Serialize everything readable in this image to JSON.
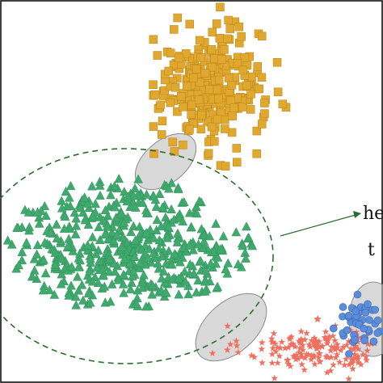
{
  "chart_data": {
    "type": "scatter",
    "title": "",
    "xlabel": "",
    "ylabel": "",
    "grid": false,
    "legend": "none",
    "annotations": [
      {
        "text": "he",
        "arrow": true
      },
      {
        "text": "t",
        "arrow": false
      }
    ],
    "series": [
      {
        "marker": "square",
        "color": "#E0A82E",
        "clusters": [
          {
            "center": [
              0.55,
              0.77
            ],
            "spread": [
              0.09,
              0.1
            ],
            "count": 300
          }
        ]
      },
      {
        "marker": "triangle",
        "color": "#3FA96E",
        "clusters": [
          {
            "center": [
              0.34,
              0.36
            ],
            "spread": [
              0.24,
              0.13
            ],
            "count": 520
          }
        ]
      },
      {
        "marker": "star",
        "color": "#F07060",
        "clusters": [
          {
            "center": [
              0.83,
              0.09
            ],
            "spread": [
              0.13,
              0.04
            ],
            "count": 170
          }
        ]
      },
      {
        "marker": "circle",
        "color": "#5B8DDB",
        "clusters": [
          {
            "center": [
              0.94,
              0.16
            ],
            "spread": [
              0.04,
              0.04
            ],
            "count": 45
          }
        ]
      }
    ],
    "decision_boundary": {
      "style": "dashed",
      "color": "#2E6B2E"
    },
    "highlight_regions": [
      {
        "color": "#BFBFBF"
      },
      {
        "color": "#BFBFBF"
      },
      {
        "color": "#BFBFBF"
      }
    ]
  }
}
